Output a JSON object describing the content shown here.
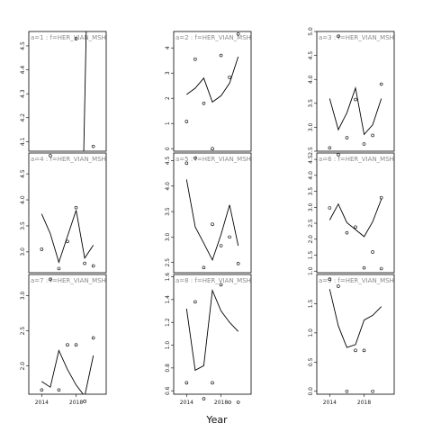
{
  "chart_data": {
    "type": "line",
    "xlabel": "Year",
    "x_ticks": [
      2014,
      2018
    ],
    "x_tick_labels": [
      "2014",
      "2018"
    ],
    "panels": [
      {
        "title": "a=1 : f=HER_VIAN_MSHA",
        "xlim": [
          2012.5,
          2021.5
        ],
        "ylim": [
          4.06,
          4.56
        ],
        "y_ticks": [
          4.1,
          4.2,
          4.3,
          4.4,
          4.5
        ],
        "y_tick_labels": [
          "4.1",
          "4.2",
          "4.3",
          "4.4",
          "4.5"
        ],
        "line": {
          "x": [
            2018.8,
            2019.2
          ],
          "y": [
            3.9,
            4.6
          ]
        },
        "points": {
          "x": [
            2018,
            2020
          ],
          "y": [
            4.53,
            4.08
          ]
        }
      },
      {
        "title": "a=4 : f=HER_VIAN_MSHA",
        "xlim": [
          2012.5,
          2021.5
        ],
        "ylim": [
          2.6,
          4.9
        ],
        "y_ticks": [
          3.0,
          3.5,
          4.0,
          4.5
        ],
        "y_tick_labels": [
          "3.0",
          "3.5",
          "4.0",
          "4.5"
        ],
        "line": {
          "x": [
            2014,
            2015,
            2016,
            2017,
            2018,
            2019,
            2020
          ],
          "y": [
            3.73,
            3.35,
            2.8,
            3.3,
            3.8,
            2.88,
            3.13
          ]
        },
        "points": {
          "x": [
            2014,
            2015,
            2016,
            2017,
            2018,
            2019,
            2020
          ],
          "y": [
            3.05,
            4.85,
            2.68,
            3.2,
            3.85,
            2.78,
            2.73
          ]
        }
      },
      {
        "title": "a=7 : f=HER_VIAN_MSHA",
        "xlim": [
          2012.5,
          2021.5
        ],
        "ylim": [
          1.6,
          3.3
        ],
        "y_ticks": [
          2.0,
          2.5,
          3.0
        ],
        "y_tick_labels": [
          "2.0",
          "2.5",
          "3.0"
        ],
        "line": {
          "x": [
            2014,
            2015,
            2016,
            2017,
            2018,
            2019,
            2020
          ],
          "y": [
            1.78,
            1.7,
            2.22,
            1.95,
            1.73,
            1.57,
            2.15
          ]
        },
        "points": {
          "x": [
            2014,
            2015,
            2016,
            2017,
            2018,
            2019,
            2020
          ],
          "y": [
            1.66,
            3.23,
            1.66,
            2.3,
            2.3,
            1.5,
            2.4
          ]
        }
      },
      {
        "title": "a=2 : f=HER_VIAN_MSHA",
        "xlim": [
          2012.5,
          2021.5
        ],
        "ylim": [
          -0.1,
          4.65
        ],
        "y_ticks": [
          0,
          1,
          2,
          3,
          4
        ],
        "y_tick_labels": [
          "0",
          "1",
          "2",
          "3",
          "4"
        ],
        "line": {
          "x": [
            2014,
            2015,
            2016,
            2017,
            2018,
            2019,
            2020
          ],
          "y": [
            2.15,
            2.4,
            2.8,
            1.85,
            2.1,
            2.6,
            3.65
          ]
        },
        "points": {
          "x": [
            2014,
            2015,
            2016,
            2017,
            2018,
            2019,
            2020
          ],
          "y": [
            1.08,
            3.55,
            1.8,
            0.0,
            3.7,
            2.83,
            4.55
          ]
        }
      },
      {
        "title": "a=5 : f=HER_VIAN_MSHA",
        "xlim": [
          2012.5,
          2021.5
        ],
        "ylim": [
          2.3,
          4.65
        ],
        "y_ticks": [
          2.5,
          3.0,
          3.5,
          4.0,
          4.5
        ],
        "y_tick_labels": [
          "2.5",
          "3.0",
          "3.5",
          "4.0",
          "4.5"
        ],
        "line": {
          "x": [
            2014,
            2015,
            2016,
            2017,
            2018,
            2019,
            2020
          ],
          "y": [
            4.13,
            3.2,
            2.88,
            2.55,
            3.05,
            3.63,
            2.83
          ]
        },
        "points": {
          "x": [
            2014,
            2015,
            2016,
            2017,
            2018,
            2019,
            2020
          ],
          "y": [
            4.45,
            4.55,
            2.4,
            3.25,
            2.83,
            3.0,
            2.48
          ]
        }
      },
      {
        "title": "a=8 : f=HER_VIAN_MSHA",
        "xlim": [
          2012.5,
          2021.5
        ],
        "ylim": [
          0.57,
          1.62
        ],
        "y_ticks": [
          0.6,
          0.8,
          1.0,
          1.2,
          1.4,
          1.6
        ],
        "y_tick_labels": [
          "0.6",
          "0.8",
          "1.0",
          "1.2",
          "1.4",
          "1.6"
        ],
        "line": {
          "x": [
            2014,
            2015,
            2016,
            2017,
            2018,
            2019,
            2020
          ],
          "y": [
            1.32,
            0.78,
            0.82,
            1.48,
            1.3,
            1.2,
            1.12
          ]
        },
        "points": {
          "x": [
            2014,
            2015,
            2016,
            2017,
            2018,
            2019,
            2020
          ],
          "y": [
            0.67,
            1.38,
            0.53,
            0.67,
            1.53,
            0.5,
            0.5
          ]
        }
      },
      {
        "title": "a=3 : f=HER_VIAN_MSHA",
        "xlim": [
          2012.5,
          2021.5
        ],
        "ylim": [
          2.5,
          5.0
        ],
        "y_ticks": [
          2.5,
          3.0,
          3.5,
          4.0,
          4.5,
          5.0
        ],
        "y_tick_labels": [
          "2.5",
          "3.0",
          "3.5",
          "4.0",
          "4.5",
          "5.0"
        ],
        "line": {
          "x": [
            2014,
            2015,
            2016,
            2017,
            2018,
            2019,
            2020
          ],
          "y": [
            3.6,
            2.95,
            3.3,
            3.82,
            2.85,
            3.05,
            3.6
          ]
        },
        "points": {
          "x": [
            2014,
            2015,
            2016,
            2017,
            2018,
            2019,
            2020
          ],
          "y": [
            2.57,
            4.9,
            2.78,
            3.58,
            2.65,
            2.83,
            3.9
          ]
        }
      },
      {
        "title": "a=6 : f=HER_VIAN_MSHA",
        "xlim": [
          2012.5,
          2021.5
        ],
        "ylim": [
          0.95,
          4.7
        ],
        "y_ticks": [
          1.0,
          1.5,
          2.0,
          2.5,
          3.0,
          3.5,
          4.0,
          4.5
        ],
        "y_tick_labels": [
          "1.0",
          "1.5",
          "2.0",
          "2.5",
          "3.0",
          "3.5",
          "4.0",
          "4.5"
        ],
        "line": {
          "x": [
            2014,
            2015,
            2016,
            2017,
            2018,
            2019,
            2020
          ],
          "y": [
            2.6,
            3.1,
            2.52,
            2.3,
            2.08,
            2.55,
            3.25
          ]
        },
        "points": {
          "x": [
            2014,
            2015,
            2016,
            2017,
            2018,
            2019,
            2020
          ],
          "y": [
            2.98,
            4.65,
            2.2,
            2.38,
            1.1,
            1.6,
            3.3
          ]
        }
      },
      {
        "title": "a=9 : f=HER_VIAN_MSHA",
        "xlim": [
          2012.5,
          2021.5
        ],
        "ylim": [
          -0.05,
          2.0
        ],
        "y_ticks": [
          0.0,
          0.5,
          1.0,
          1.5
        ],
        "y_tick_labels": [
          "0.0",
          "0.5",
          "1.0",
          "1.5"
        ],
        "line": {
          "x": [
            2014,
            2015,
            2016,
            2017,
            2018,
            2019,
            2020
          ],
          "y": [
            1.75,
            1.12,
            0.75,
            0.8,
            1.22,
            1.3,
            1.45
          ]
        },
        "points": {
          "x": [
            2014,
            2015,
            2016,
            2017,
            2018,
            2019,
            2020
          ],
          "y": [
            1.92,
            1.8,
            0.0,
            0.7,
            0.7,
            0.0,
            2.1
          ]
        }
      }
    ]
  }
}
